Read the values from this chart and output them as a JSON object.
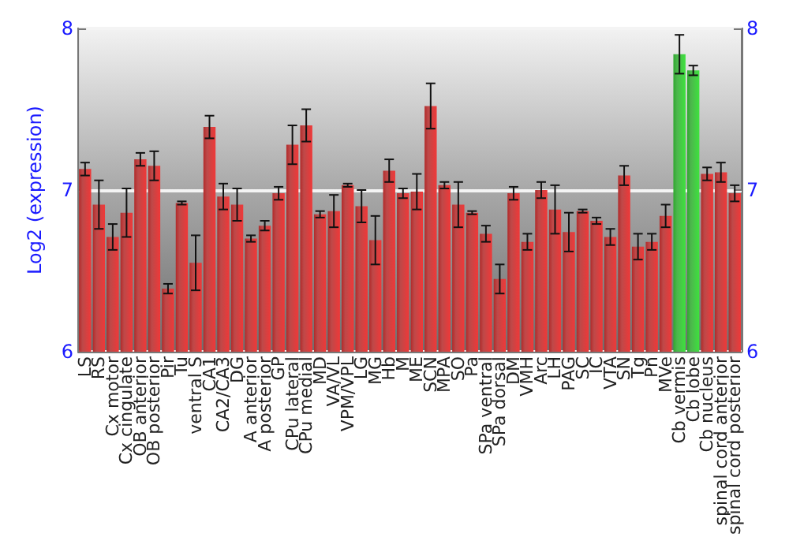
{
  "chart_data": {
    "type": "bar",
    "ylabel": "Log2 (expression)",
    "categories": [
      "LS",
      "RS",
      "Cx motor",
      "Cx cingulate",
      "OB anterior",
      "OB posterior",
      "Pir",
      "Tu",
      "ventral S",
      "CA1",
      "CA2/CA3",
      "DG",
      "A anterior",
      "A posterior",
      "GP",
      "CPu lateral",
      "CPu medial",
      "MD",
      "VA/VL",
      "VPM/VPL",
      "LG",
      "MG",
      "Hb",
      "M",
      "ME",
      "SCN",
      "MPA",
      "SO",
      "Pa",
      "SPa ventral",
      "SPa dorsal",
      "DM",
      "VMH",
      "Arc",
      "LH",
      "PAG",
      "SC",
      "IC",
      "VTA",
      "SN",
      "Tg",
      "Pn",
      "MVe",
      "Cb vermis",
      "Cb lobe",
      "Cb nucleus",
      "spinal cord anterior",
      "spinal cord posterior"
    ],
    "values": [
      7.13,
      6.91,
      6.71,
      6.86,
      7.19,
      7.15,
      6.39,
      6.92,
      6.55,
      7.39,
      6.96,
      6.91,
      6.7,
      6.78,
      6.98,
      7.28,
      7.4,
      6.85,
      6.87,
      7.03,
      6.9,
      6.69,
      7.12,
      6.98,
      6.99,
      7.52,
      7.03,
      6.91,
      6.86,
      6.73,
      6.45,
      6.98,
      6.68,
      7.0,
      6.88,
      6.74,
      6.87,
      6.81,
      6.71,
      7.09,
      6.65,
      6.68,
      6.84,
      7.84,
      7.74,
      7.1,
      7.11,
      6.98
    ],
    "errors": [
      0.04,
      0.15,
      0.08,
      0.15,
      0.04,
      0.09,
      0.03,
      0.01,
      0.17,
      0.07,
      0.08,
      0.1,
      0.02,
      0.03,
      0.04,
      0.12,
      0.1,
      0.02,
      0.1,
      0.01,
      0.1,
      0.15,
      0.07,
      0.03,
      0.11,
      0.14,
      0.02,
      0.14,
      0.01,
      0.05,
      0.09,
      0.04,
      0.05,
      0.05,
      0.15,
      0.12,
      0.01,
      0.02,
      0.05,
      0.06,
      0.08,
      0.05,
      0.07,
      0.12,
      0.03,
      0.04,
      0.06,
      0.05
    ],
    "colors": [
      "#b22a2a",
      "#b22a2a",
      "#b22a2a",
      "#b22a2a",
      "#b22a2a",
      "#b22a2a",
      "#b22a2a",
      "#b22a2a",
      "#b22a2a",
      "#b22a2a",
      "#b22a2a",
      "#b22a2a",
      "#b22a2a",
      "#b22a2a",
      "#b22a2a",
      "#b22a2a",
      "#b22a2a",
      "#b22a2a",
      "#b22a2a",
      "#b22a2a",
      "#b22a2a",
      "#b22a2a",
      "#b22a2a",
      "#b22a2a",
      "#b22a2a",
      "#b22a2a",
      "#b22a2a",
      "#b22a2a",
      "#b22a2a",
      "#b22a2a",
      "#b22a2a",
      "#b22a2a",
      "#b22a2a",
      "#b22a2a",
      "#b22a2a",
      "#b22a2a",
      "#b22a2a",
      "#b22a2a",
      "#b22a2a",
      "#b22a2a",
      "#b22a2a",
      "#b22a2a",
      "#b22a2a",
      "#2ea82e",
      "#2ea82e",
      "#b22a2a",
      "#b22a2a",
      "#b22a2a"
    ],
    "ylim": [
      6,
      8
    ],
    "yticks": [
      6,
      7,
      8
    ],
    "y2lim": [
      6,
      8
    ],
    "y2ticks": [
      6,
      7,
      8
    ],
    "grid": "y"
  }
}
